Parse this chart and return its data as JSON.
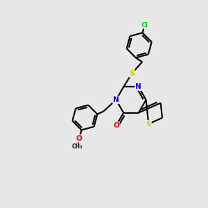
{
  "background_color": "#e8e8e8",
  "atom_colors": {
    "C": "#000000",
    "N": "#0000ff",
    "S": "#cccc00",
    "O": "#ff0000",
    "Cl": "#00cc00"
  },
  "figsize": [
    3.0,
    3.0
  ],
  "dpi": 100
}
